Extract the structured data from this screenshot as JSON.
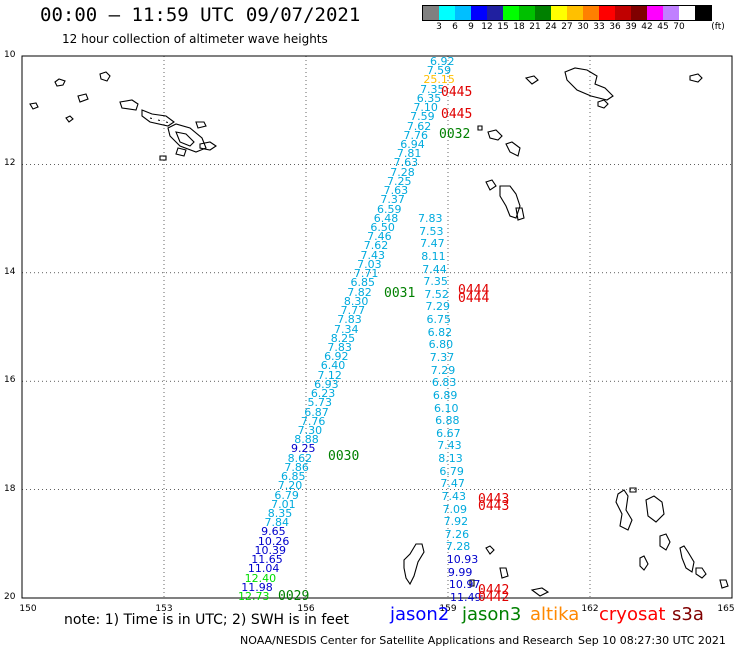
{
  "header": {
    "title": "00:00 – 11:59 UTC 09/07/2021",
    "subtitle": "12 hour collection of altimeter wave heights"
  },
  "colorbar": {
    "colors": [
      "#808080",
      "#00ffff",
      "#00bfff",
      "#0000ff",
      "#2020a0",
      "#00ff00",
      "#00c000",
      "#008000",
      "#ffff00",
      "#ffc000",
      "#ff8000",
      "#ff0000",
      "#c00000",
      "#800000",
      "#ff00ff",
      "#c080ff",
      "#ffffff",
      "#000000"
    ],
    "ticks": [
      "3",
      "6",
      "9",
      "12",
      "15",
      "18",
      "21",
      "24",
      "27",
      "30",
      "33",
      "36",
      "39",
      "42",
      "45",
      "70"
    ],
    "unit": "(ft)"
  },
  "map": {
    "lat_labels": [
      "10",
      "12",
      "14",
      "16",
      "18",
      "20"
    ],
    "lon_labels": [
      "150",
      "153",
      "156",
      "159",
      "162",
      "165"
    ]
  },
  "passes": [
    {
      "label": "0445",
      "color": "#e00000"
    },
    {
      "label": "0445",
      "color": "#e00000"
    },
    {
      "label": "0032",
      "color": "#008000"
    },
    {
      "label": "0031",
      "color": "#008000"
    },
    {
      "label": "0444",
      "color": "#e00000"
    },
    {
      "label": "0444",
      "color": "#e00000"
    },
    {
      "label": "0030",
      "color": "#008000"
    },
    {
      "label": "0443",
      "color": "#e00000"
    },
    {
      "label": "0443",
      "color": "#e00000"
    },
    {
      "label": "0029",
      "color": "#008000"
    },
    {
      "label": "0442",
      "color": "#e00000"
    },
    {
      "label": "0442",
      "color": "#e00000"
    }
  ],
  "track_left": [
    {
      "v": "6.92",
      "c": "#00aadd"
    },
    {
      "v": "7.59",
      "c": "#00aadd"
    },
    {
      "v": "25.15",
      "c": "#ffc000"
    },
    {
      "v": "7.35",
      "c": "#00aadd"
    },
    {
      "v": "6.35",
      "c": "#00aadd"
    },
    {
      "v": "7.10",
      "c": "#00aadd"
    },
    {
      "v": "7.59",
      "c": "#00aadd"
    },
    {
      "v": "7.62",
      "c": "#00aadd"
    },
    {
      "v": "7.76",
      "c": "#00aadd"
    },
    {
      "v": "6.94",
      "c": "#00aadd"
    },
    {
      "v": "7.81",
      "c": "#00aadd"
    },
    {
      "v": "7.63",
      "c": "#00aadd"
    },
    {
      "v": "7.28",
      "c": "#00aadd"
    },
    {
      "v": "7.25",
      "c": "#00aadd"
    },
    {
      "v": "7.63",
      "c": "#00aadd"
    },
    {
      "v": "7.37",
      "c": "#00aadd"
    },
    {
      "v": "6.59",
      "c": "#00aadd"
    },
    {
      "v": "6.48",
      "c": "#00aadd"
    },
    {
      "v": "6.50",
      "c": "#00aadd"
    },
    {
      "v": "7.46",
      "c": "#00aadd"
    },
    {
      "v": "7.62",
      "c": "#00aadd"
    },
    {
      "v": "7.43",
      "c": "#00aadd"
    },
    {
      "v": "7.03",
      "c": "#00aadd"
    },
    {
      "v": "7.71",
      "c": "#00aadd"
    },
    {
      "v": "6.85",
      "c": "#00aadd"
    },
    {
      "v": "7.82",
      "c": "#00aadd"
    },
    {
      "v": "8.30",
      "c": "#00aadd"
    },
    {
      "v": "7.77",
      "c": "#00aadd"
    },
    {
      "v": "7.83",
      "c": "#00aadd"
    },
    {
      "v": "7.34",
      "c": "#00aadd"
    },
    {
      "v": "8.25",
      "c": "#00aadd"
    },
    {
      "v": "7.83",
      "c": "#00aadd"
    },
    {
      "v": "6.92",
      "c": "#00aadd"
    },
    {
      "v": "6.40",
      "c": "#00aadd"
    },
    {
      "v": "7.12",
      "c": "#00aadd"
    },
    {
      "v": "6.93",
      "c": "#00aadd"
    },
    {
      "v": "6.23",
      "c": "#00aadd"
    },
    {
      "v": "5.73",
      "c": "#00aadd"
    },
    {
      "v": "6.87",
      "c": "#00aadd"
    },
    {
      "v": "7.76",
      "c": "#00aadd"
    },
    {
      "v": "7.30",
      "c": "#00aadd"
    },
    {
      "v": "8.88",
      "c": "#00aadd"
    },
    {
      "v": "9.25",
      "c": "#0000cc"
    },
    {
      "v": "8.62",
      "c": "#00aadd"
    },
    {
      "v": "7.86",
      "c": "#00aadd"
    },
    {
      "v": "6.85",
      "c": "#00aadd"
    },
    {
      "v": "7.20",
      "c": "#00aadd"
    },
    {
      "v": "6.79",
      "c": "#00aadd"
    },
    {
      "v": "7.01",
      "c": "#00aadd"
    },
    {
      "v": "8.35",
      "c": "#00aadd"
    },
    {
      "v": "7.84",
      "c": "#00aadd"
    },
    {
      "v": "9.65",
      "c": "#0000cc"
    },
    {
      "v": "10.26",
      "c": "#0000cc"
    },
    {
      "v": "10.39",
      "c": "#0000cc"
    },
    {
      "v": "11.65",
      "c": "#0000cc"
    },
    {
      "v": "11.04",
      "c": "#0000cc"
    },
    {
      "v": "12.40",
      "c": "#00dd00"
    },
    {
      "v": "11.98",
      "c": "#0000cc"
    },
    {
      "v": "12.73",
      "c": "#00dd00"
    }
  ],
  "track_right": [
    {
      "v": "7.83",
      "c": "#00aadd"
    },
    {
      "v": "7.53",
      "c": "#00aadd"
    },
    {
      "v": "7.47",
      "c": "#00aadd"
    },
    {
      "v": "8.11",
      "c": "#00aadd"
    },
    {
      "v": "7.44",
      "c": "#00aadd"
    },
    {
      "v": "7.35",
      "c": "#00aadd"
    },
    {
      "v": "7.52",
      "c": "#00aadd"
    },
    {
      "v": "7.29",
      "c": "#00aadd"
    },
    {
      "v": "6.75",
      "c": "#00aadd"
    },
    {
      "v": "6.82",
      "c": "#00aadd"
    },
    {
      "v": "6.80",
      "c": "#00aadd"
    },
    {
      "v": "7.37",
      "c": "#00aadd"
    },
    {
      "v": "7.29",
      "c": "#00aadd"
    },
    {
      "v": "6.83",
      "c": "#00aadd"
    },
    {
      "v": "6.89",
      "c": "#00aadd"
    },
    {
      "v": "6.10",
      "c": "#00aadd"
    },
    {
      "v": "6.88",
      "c": "#00aadd"
    },
    {
      "v": "6.67",
      "c": "#00aadd"
    },
    {
      "v": "7.43",
      "c": "#00aadd"
    },
    {
      "v": "8.13",
      "c": "#00aadd"
    },
    {
      "v": "6.79",
      "c": "#00aadd"
    },
    {
      "v": "7.47",
      "c": "#00aadd"
    },
    {
      "v": "7.43",
      "c": "#00aadd"
    },
    {
      "v": "7.09",
      "c": "#00aadd"
    },
    {
      "v": "7.92",
      "c": "#00aadd"
    },
    {
      "v": "7.26",
      "c": "#00aadd"
    },
    {
      "v": "7.28",
      "c": "#00aadd"
    },
    {
      "v": "10.93",
      "c": "#0000cc"
    },
    {
      "v": "9.99",
      "c": "#0000cc"
    },
    {
      "v": "10.97",
      "c": "#0000cc"
    },
    {
      "v": "11.49",
      "c": "#0000cc"
    }
  ],
  "footer": {
    "note": "note: 1) Time is in UTC; 2) SWH is in feet",
    "legend": [
      {
        "name": "jason2",
        "color": "#0000ff"
      },
      {
        "name": "jason3",
        "color": "#008000"
      },
      {
        "name": "altika",
        "color": "#ff8800"
      },
      {
        "name": "cryosat",
        "color": "#ff0000"
      },
      {
        "name": "s3a",
        "color": "#800000"
      }
    ],
    "credit": "NOAA/NESDIS Center for Satellite Applications and Research",
    "timestamp": "Sep 10 08:27:30 UTC 2021"
  }
}
